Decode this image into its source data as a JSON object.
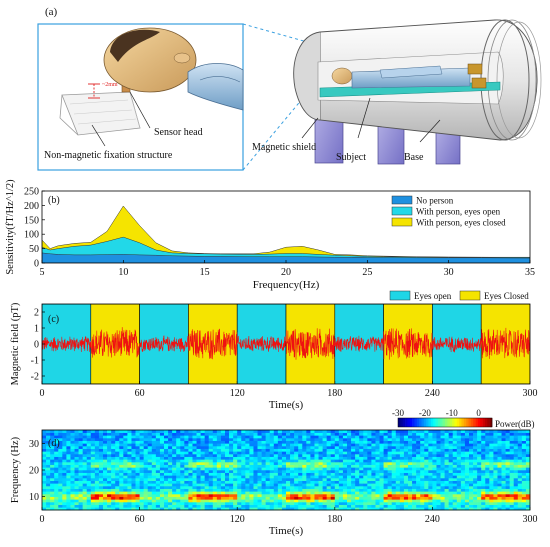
{
  "panel_a": {
    "label": "(a)",
    "dim_label": "~2mm",
    "callouts": {
      "sensor_head": "Sensor head",
      "fixation": "Non-magnetic fixation structure",
      "shield": "Magnetic shield",
      "subject": "Subject",
      "base": "Base"
    }
  },
  "chart_data": [
    {
      "id": "b",
      "panel_label": "(b)",
      "type": "area",
      "xlabel": "Frequency(Hz)",
      "ylabel": "Sensitivity(fT/Hz^1/2)",
      "xlim": [
        5,
        35
      ],
      "ylim": [
        0,
        250
      ],
      "xticks": [
        5,
        10,
        15,
        20,
        25,
        30,
        35
      ],
      "yticks": [
        0,
        50,
        100,
        150,
        200,
        250
      ],
      "x": [
        5,
        5.5,
        6,
        7,
        8,
        9,
        10,
        11,
        12,
        13,
        14,
        15,
        16,
        18,
        19,
        20,
        21,
        22,
        23,
        24,
        25,
        26,
        28,
        30,
        32,
        35
      ],
      "series": [
        {
          "name": "No person",
          "color": "#1e90e0",
          "values": [
            35,
            32,
            30,
            28,
            28,
            29,
            30,
            28,
            27,
            25,
            24,
            23,
            23,
            22,
            22,
            22,
            22,
            21,
            20,
            20,
            19,
            19,
            18,
            18,
            18,
            17
          ]
        },
        {
          "name": "With person, eyes open",
          "color": "#22d8e8",
          "values": [
            55,
            45,
            50,
            58,
            62,
            75,
            90,
            70,
            45,
            35,
            33,
            32,
            31,
            30,
            31,
            33,
            33,
            30,
            27,
            25,
            23,
            22,
            21,
            20,
            20,
            19
          ]
        },
        {
          "name": "With person, eyes closed",
          "color": "#f5e400",
          "values": [
            80,
            50,
            60,
            68,
            72,
            110,
            198,
            130,
            70,
            42,
            35,
            33,
            32,
            32,
            38,
            55,
            58,
            45,
            30,
            28,
            25,
            24,
            22,
            21,
            20,
            20
          ]
        }
      ],
      "legend_position": "top-right"
    },
    {
      "id": "c",
      "panel_label": "(c)",
      "type": "line",
      "xlabel": "Time(s)",
      "ylabel": "Magnetic field (pT)",
      "xlim": [
        0,
        300
      ],
      "ylim": [
        -2.5,
        2.5
      ],
      "xticks": [
        0,
        60,
        120,
        180,
        240,
        300
      ],
      "yticks": [
        -2,
        -1,
        0,
        1,
        2
      ],
      "line_color": "#ee1111",
      "background_intervals": [
        {
          "start": 0,
          "end": 30,
          "state": "Eyes open"
        },
        {
          "start": 30,
          "end": 60,
          "state": "Eyes Closed"
        },
        {
          "start": 60,
          "end": 90,
          "state": "Eyes open"
        },
        {
          "start": 90,
          "end": 120,
          "state": "Eyes Closed"
        },
        {
          "start": 120,
          "end": 150,
          "state": "Eyes open"
        },
        {
          "start": 150,
          "end": 180,
          "state": "Eyes Closed"
        },
        {
          "start": 180,
          "end": 210,
          "state": "Eyes open"
        },
        {
          "start": 210,
          "end": 240,
          "state": "Eyes Closed"
        },
        {
          "start": 240,
          "end": 270,
          "state": "Eyes open"
        },
        {
          "start": 270,
          "end": 300,
          "state": "Eyes Closed"
        }
      ],
      "legend": [
        {
          "name": "Eyes open",
          "color": "#1fd6e6"
        },
        {
          "name": "Eyes Closed",
          "color": "#f5e400"
        }
      ],
      "amplitude_open": 0.55,
      "amplitude_closed": 1.1
    },
    {
      "id": "d",
      "panel_label": "(d)",
      "type": "heatmap",
      "xlabel": "Time(s)",
      "ylabel": "Frequency (Hz)",
      "xlim": [
        0,
        300
      ],
      "ylim": [
        5,
        35
      ],
      "xticks": [
        0,
        60,
        120,
        180,
        240,
        300
      ],
      "yticks": [
        10,
        20,
        30
      ],
      "colorbar": {
        "label": "Power(dB)",
        "ticks": [
          -30,
          -20,
          -10,
          0
        ]
      },
      "alpha_band_hz": 10,
      "harmonic_band_hz": 22,
      "closed_intervals": [
        [
          30,
          60
        ],
        [
          90,
          120
        ],
        [
          150,
          180
        ],
        [
          210,
          240
        ],
        [
          270,
          300
        ]
      ]
    }
  ]
}
